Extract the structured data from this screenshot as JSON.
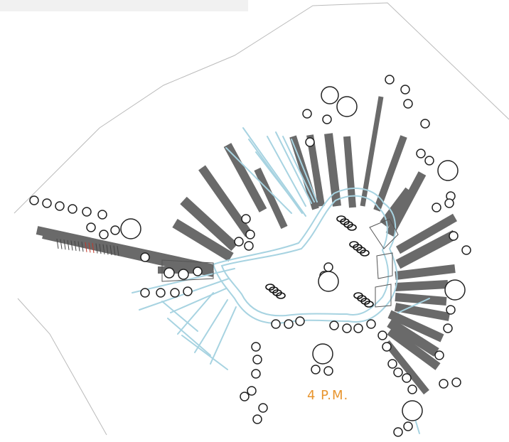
{
  "annotation": {
    "time_label": "4 P.M.",
    "label_color": "#e8952f"
  },
  "palette": {
    "shadow": "#6a6a6a",
    "path": "#a7d3e1",
    "outline": "#222222",
    "boundary": "#bbbbbb",
    "band": "#f1f1f1",
    "accent_red": "#c0392b"
  },
  "elements": {
    "trees": "circles",
    "shadows": "bars",
    "paths": "lines",
    "benches": "seat-clusters"
  }
}
